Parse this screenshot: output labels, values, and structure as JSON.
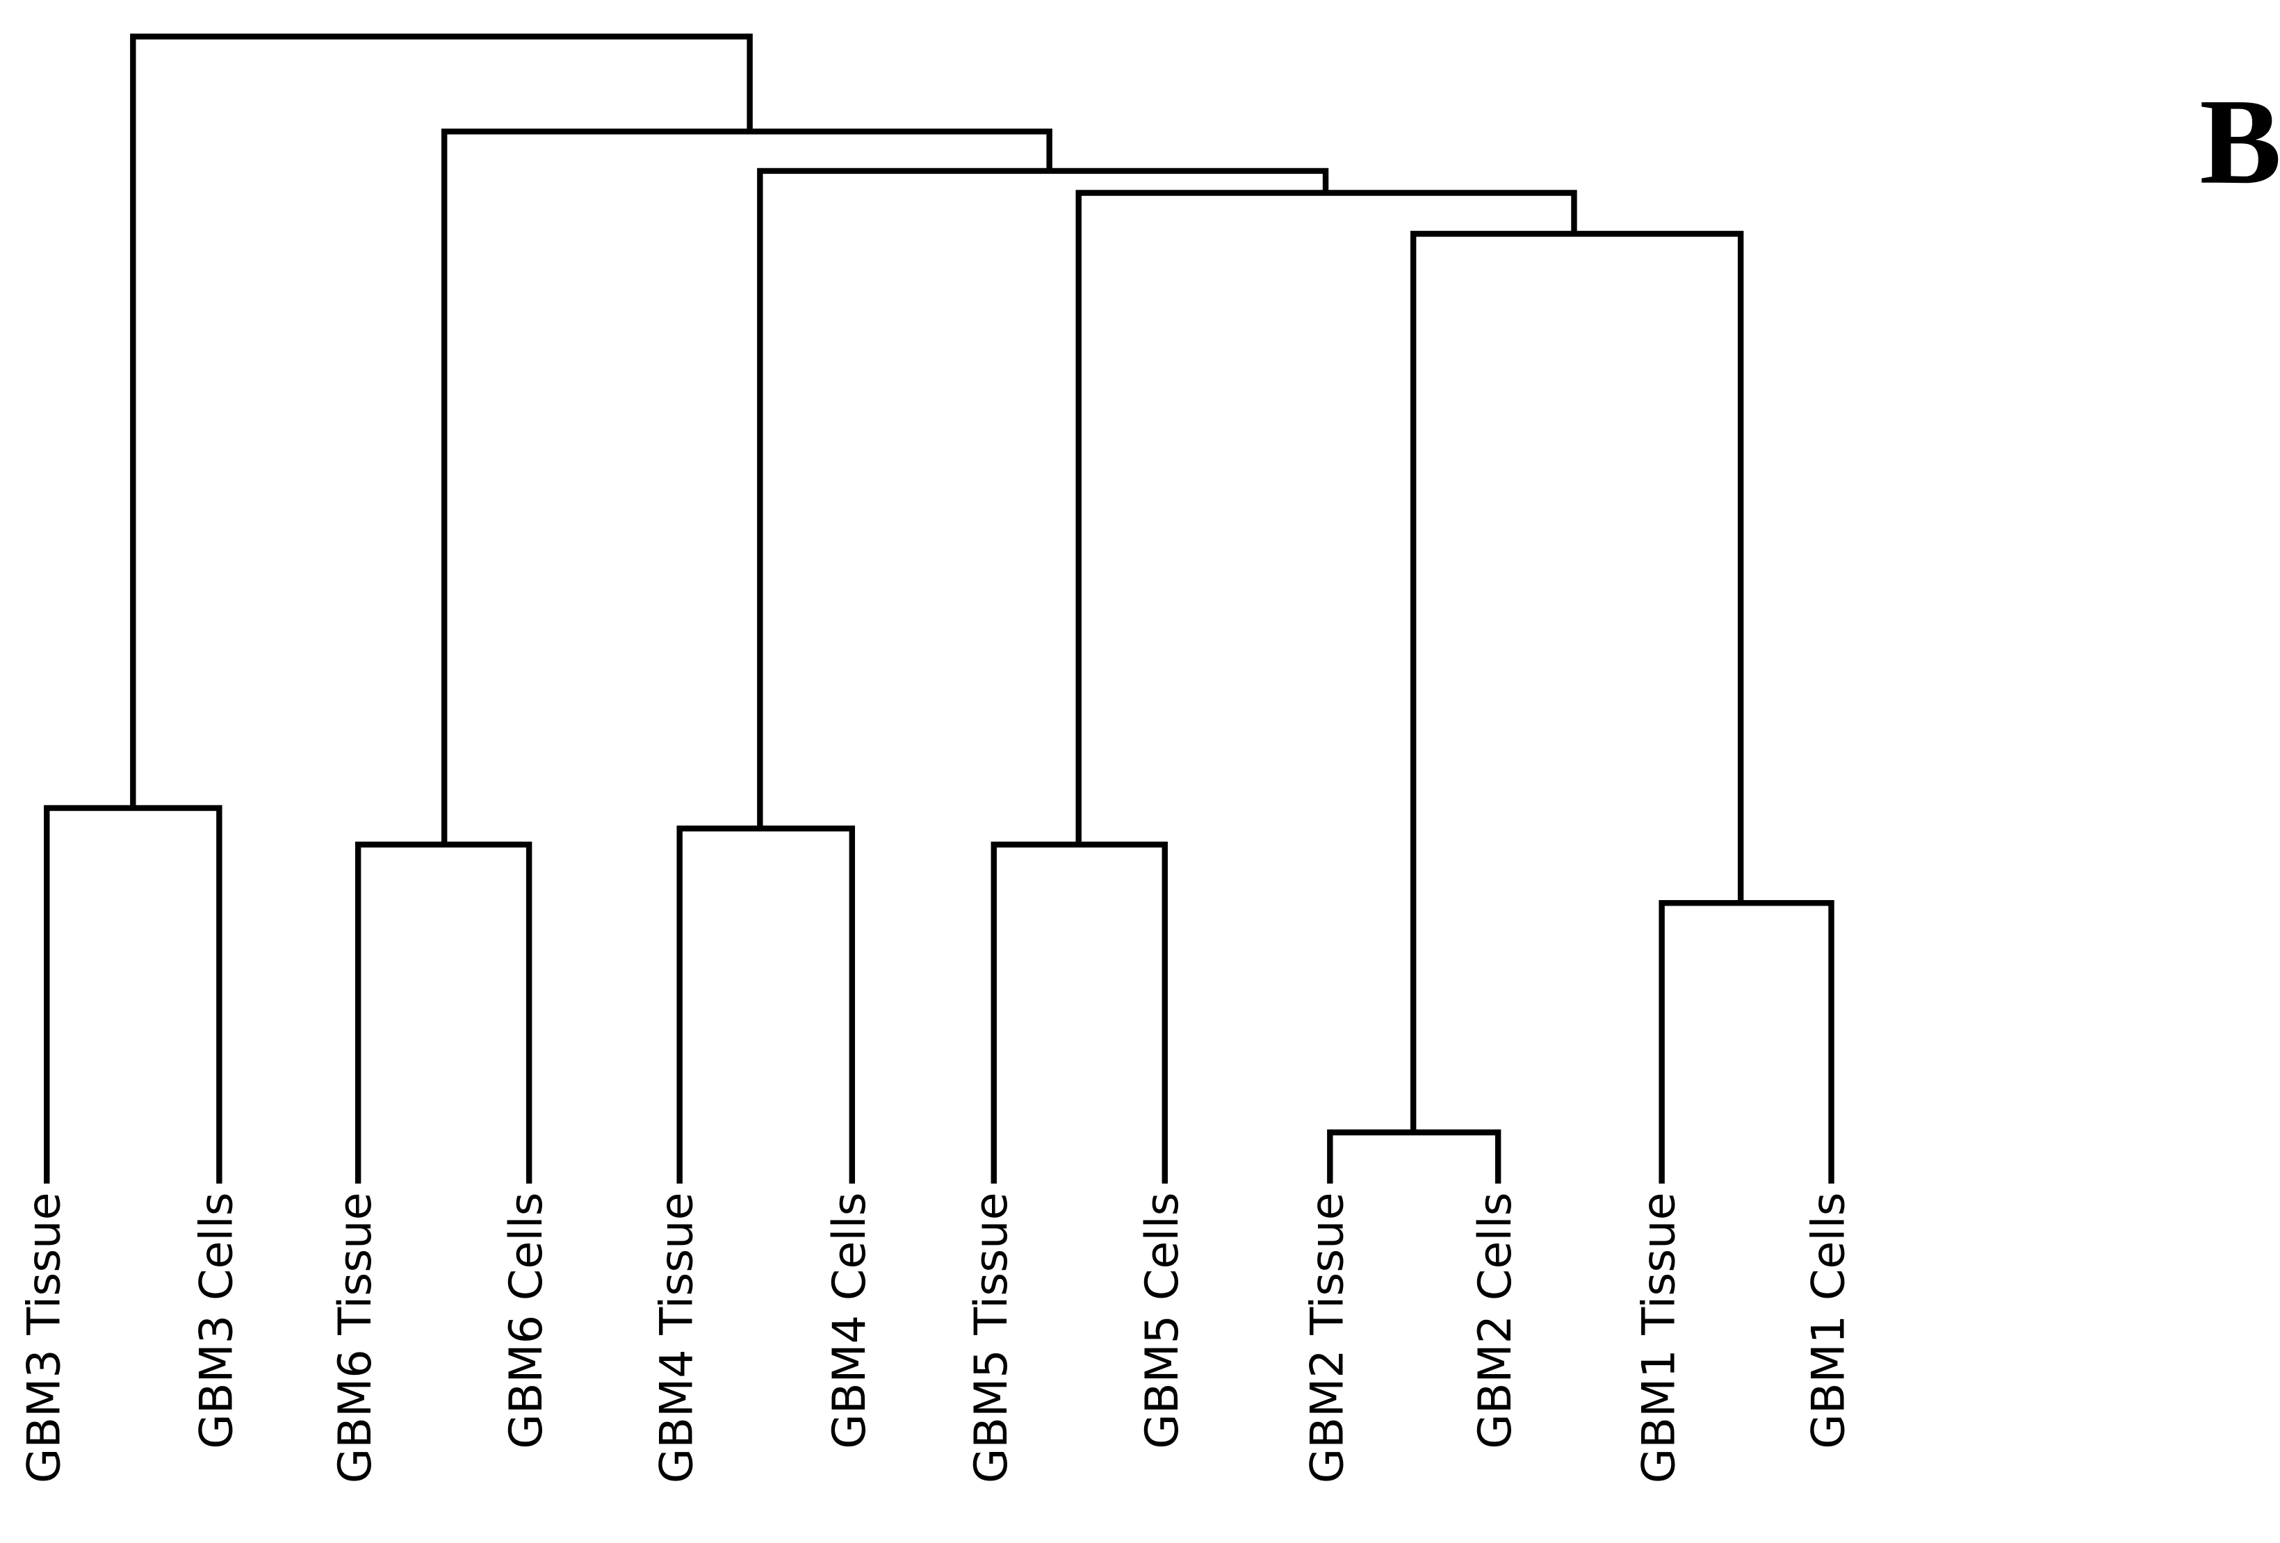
{
  "panel_label": "B",
  "leaves": [
    "GBM3 Tissue",
    "GBM3 Cells",
    "GBM6 Tissue",
    "GBM6 Cells",
    "GBM4 Tissue",
    "GBM4 Cells",
    "GBM5 Tissue",
    "GBM5 Cells",
    "GBM2 Tissue",
    "GBM2 Cells",
    "GBM1 Tissue",
    "GBM1 Cells"
  ]
}
